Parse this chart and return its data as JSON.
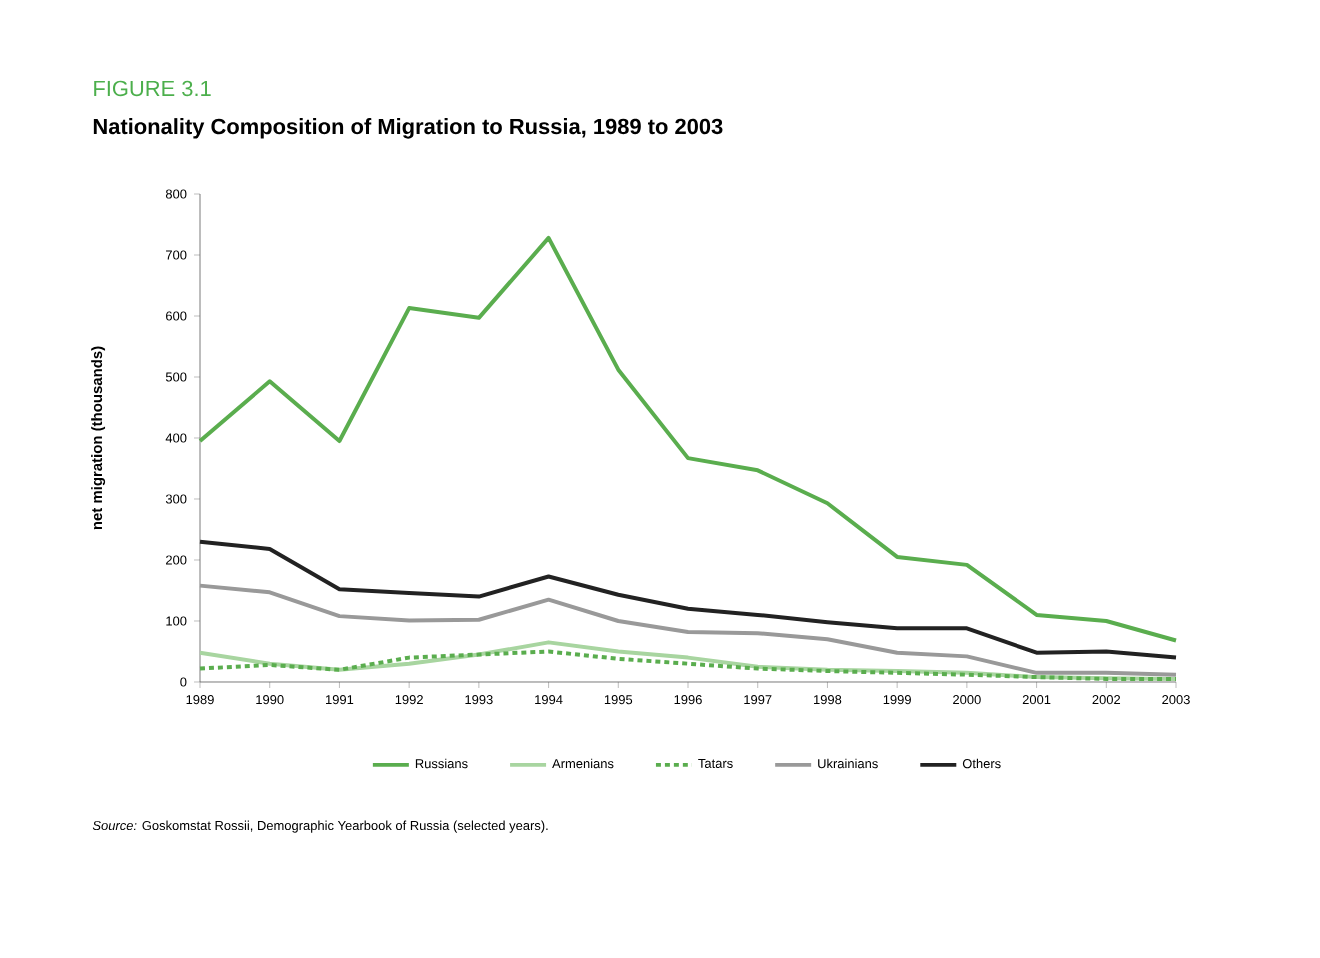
{
  "chart_data": {
    "type": "line",
    "title": "Nationality Composition of Migration to Russia, 1989 to 2003",
    "subtitle": "FIGURE 3.1",
    "ylabel": "net migration (thousands)",
    "x": [
      1989,
      1990,
      1991,
      1992,
      1993,
      1994,
      1995,
      1996,
      1997,
      1998,
      1999,
      2000,
      2001,
      2002,
      2003
    ],
    "xlim": [
      1989,
      2003
    ],
    "xticks": [
      1989,
      1990,
      1991,
      1992,
      1993,
      1994,
      1995,
      1996,
      1997,
      1998,
      1999,
      2000,
      2001,
      2002,
      2003
    ],
    "ylim": [
      0,
      800
    ],
    "yticks": [
      0,
      100,
      200,
      300,
      400,
      500,
      600,
      700,
      800
    ],
    "series": [
      {
        "name": "Russians",
        "color": "#5aad4e",
        "values": [
          395,
          493,
          395,
          613,
          597,
          728,
          512,
          367,
          347,
          293,
          205,
          192,
          110,
          100,
          68
        ]
      },
      {
        "name": "Armenians",
        "color": "#a8d5a0",
        "values": [
          48,
          30,
          20,
          30,
          45,
          65,
          50,
          40,
          25,
          20,
          18,
          15,
          8,
          6,
          5
        ]
      },
      {
        "name": "Tatars",
        "color": "#5aad4e",
        "line_style": "dotted",
        "values": [
          22,
          28,
          20,
          40,
          45,
          50,
          38,
          30,
          22,
          18,
          15,
          12,
          8,
          5,
          5
        ]
      },
      {
        "name": "Ukrainians",
        "color": "#999999",
        "values": [
          158,
          147,
          108,
          101,
          102,
          135,
          100,
          82,
          80,
          70,
          48,
          42,
          15,
          15,
          12
        ]
      },
      {
        "name": "Others",
        "color": "#222222",
        "values": [
          230,
          218,
          152,
          146,
          140,
          173,
          143,
          120,
          110,
          98,
          88,
          88,
          48,
          50,
          40
        ]
      }
    ],
    "legend": "bottom",
    "grid": false,
    "line_style": "solid",
    "annotations": [
      "*Source:* Goskomstat Rossii, Demographic Yearbook of Russia (selected years)."
    ]
  }
}
